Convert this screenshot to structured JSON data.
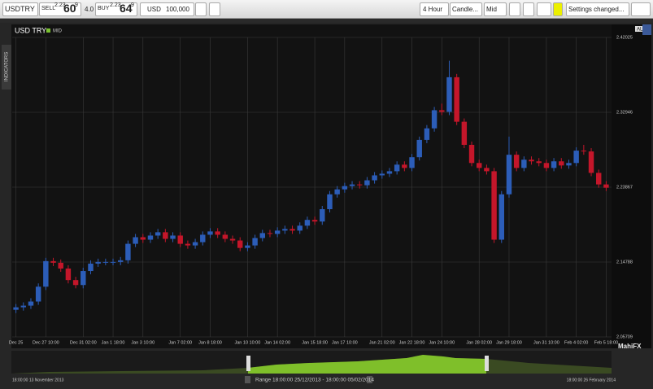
{
  "toolbar": {
    "symbol": "USDTRY",
    "sell_label": "SELL",
    "sell_big": "2.23",
    "sell_pips": "60",
    "sell_frac": "9",
    "spread": "4.0",
    "buy_label": "BUY",
    "buy_big": "2.23",
    "buy_pips": "64",
    "buy_frac": "9",
    "currency": "USD",
    "amount": "100,000",
    "interval": "4 Hour",
    "chart_style": "Candle...",
    "price_type": "Mid",
    "settings": "Settings changed..."
  },
  "side_tab": "INDICATORS",
  "all_button": "ALL",
  "chart_data": {
    "type": "candlestick",
    "title": "USD TRY",
    "badge": "MID",
    "up_color": "#2c5db8",
    "down_color": "#c4162a",
    "grid": true,
    "open": [
      2.09,
      2.093,
      2.095,
      2.1,
      2.118,
      2.149,
      2.147,
      2.14,
      2.126,
      2.12,
      2.137,
      2.146,
      2.148,
      2.148,
      2.148,
      2.15,
      2.17,
      2.178,
      2.175,
      2.18,
      2.184,
      2.176,
      2.18,
      2.17,
      2.168,
      2.172,
      2.181,
      2.185,
      2.181,
      2.176,
      2.174,
      2.165,
      2.168,
      2.177,
      2.183,
      2.182,
      2.186,
      2.188,
      2.186,
      2.192,
      2.199,
      2.197,
      2.212,
      2.23,
      2.236,
      2.24,
      2.242,
      2.241,
      2.247,
      2.253,
      2.255,
      2.258,
      2.266,
      2.262,
      2.275,
      2.296,
      2.31,
      2.332,
      2.33,
      2.372,
      2.318,
      2.29,
      2.268,
      2.262,
      2.258,
      2.175,
      2.23,
      2.278,
      2.262,
      2.272,
      2.27,
      2.268,
      2.262,
      2.27,
      2.265,
      2.268,
      2.283,
      2.282,
      2.256,
      2.242
    ],
    "high": [
      2.097,
      2.099,
      2.104,
      2.122,
      2.153,
      2.153,
      2.151,
      2.144,
      2.13,
      2.141,
      2.15,
      2.152,
      2.152,
      2.152,
      2.154,
      2.174,
      2.182,
      2.182,
      2.184,
      2.188,
      2.188,
      2.184,
      2.184,
      2.174,
      2.176,
      2.185,
      2.189,
      2.189,
      2.185,
      2.18,
      2.178,
      2.172,
      2.181,
      2.187,
      2.187,
      2.19,
      2.192,
      2.192,
      2.196,
      2.203,
      2.203,
      2.216,
      2.234,
      2.24,
      2.244,
      2.246,
      2.246,
      2.251,
      2.257,
      2.259,
      2.262,
      2.27,
      2.27,
      2.279,
      2.3,
      2.314,
      2.336,
      2.34,
      2.392,
      2.376,
      2.322,
      2.294,
      2.272,
      2.266,
      2.262,
      2.234,
      2.3,
      2.282,
      2.276,
      2.276,
      2.274,
      2.272,
      2.274,
      2.274,
      2.272,
      2.287,
      2.29,
      2.286,
      2.26,
      2.246
    ],
    "low": [
      2.086,
      2.089,
      2.091,
      2.096,
      2.114,
      2.143,
      2.136,
      2.122,
      2.116,
      2.116,
      2.133,
      2.142,
      2.144,
      2.144,
      2.144,
      2.146,
      2.166,
      2.171,
      2.171,
      2.176,
      2.172,
      2.172,
      2.166,
      2.164,
      2.164,
      2.168,
      2.177,
      2.177,
      2.172,
      2.17,
      2.161,
      2.161,
      2.164,
      2.173,
      2.178,
      2.178,
      2.182,
      2.182,
      2.182,
      2.188,
      2.193,
      2.193,
      2.208,
      2.226,
      2.232,
      2.236,
      2.237,
      2.237,
      2.243,
      2.249,
      2.251,
      2.254,
      2.258,
      2.258,
      2.271,
      2.292,
      2.306,
      2.326,
      2.326,
      2.314,
      2.286,
      2.264,
      2.258,
      2.254,
      2.171,
      2.171,
      2.226,
      2.258,
      2.258,
      2.266,
      2.264,
      2.258,
      2.258,
      2.261,
      2.261,
      2.264,
      2.278,
      2.252,
      2.238,
      2.234
    ],
    "close": [
      2.093,
      2.095,
      2.1,
      2.118,
      2.149,
      2.147,
      2.14,
      2.126,
      2.12,
      2.137,
      2.146,
      2.148,
      2.148,
      2.148,
      2.15,
      2.17,
      2.178,
      2.175,
      2.18,
      2.184,
      2.176,
      2.18,
      2.17,
      2.168,
      2.172,
      2.181,
      2.185,
      2.181,
      2.176,
      2.174,
      2.165,
      2.168,
      2.177,
      2.183,
      2.182,
      2.186,
      2.188,
      2.186,
      2.192,
      2.199,
      2.197,
      2.212,
      2.23,
      2.236,
      2.24,
      2.242,
      2.241,
      2.247,
      2.253,
      2.255,
      2.258,
      2.266,
      2.262,
      2.275,
      2.296,
      2.31,
      2.332,
      2.33,
      2.372,
      2.318,
      2.29,
      2.268,
      2.262,
      2.258,
      2.175,
      2.23,
      2.278,
      2.262,
      2.272,
      2.27,
      2.268,
      2.262,
      2.27,
      2.265,
      2.268,
      2.283,
      2.282,
      2.256,
      2.242,
      2.238
    ],
    "ylim": [
      2.05709,
      2.42025
    ],
    "yticks": [
      2.05709,
      2.14788,
      2.23867,
      2.32946,
      2.42025
    ],
    "xlim": [
      -0.5,
      79.5
    ],
    "xticks": [
      {
        "value": 0,
        "label": "Dec 25"
      },
      {
        "value": 4,
        "label": "Dec 27 10:00"
      },
      {
        "value": 9,
        "label": "Dec 31 02:00"
      },
      {
        "value": 13,
        "label": "Jan 1 18:00"
      },
      {
        "value": 17,
        "label": "Jan 3 10:00"
      },
      {
        "value": 22,
        "label": "Jan 7 02:00"
      },
      {
        "value": 26,
        "label": "Jan 8 18:00"
      },
      {
        "value": 31,
        "label": "Jan 10 10:00"
      },
      {
        "value": 35,
        "label": "Jan 14 02:00"
      },
      {
        "value": 40,
        "label": "Jan 15 18:00"
      },
      {
        "value": 44,
        "label": "Jan 17 10:00"
      },
      {
        "value": 49,
        "label": "Jan 21 02:00"
      },
      {
        "value": 53,
        "label": "Jan 22 18:00"
      },
      {
        "value": 57,
        "label": "Jan 24 10:00"
      },
      {
        "value": 62,
        "label": "Jan 28 02:00"
      },
      {
        "value": 66,
        "label": "Jan 29 18:00"
      },
      {
        "value": 71,
        "label": "Jan 31 10:00"
      },
      {
        "value": 75,
        "label": "Feb 4 02:00"
      },
      {
        "value": 79,
        "label": "Feb 5 18:00"
      }
    ]
  },
  "navigator": {
    "start": "18:00:00 13 November 2013",
    "end": "18:00:00 26 February 2014",
    "range": "Range 18:00:00 25/12/2013 - 18:00:00 05/02/2014"
  },
  "brand": "MahiFX"
}
